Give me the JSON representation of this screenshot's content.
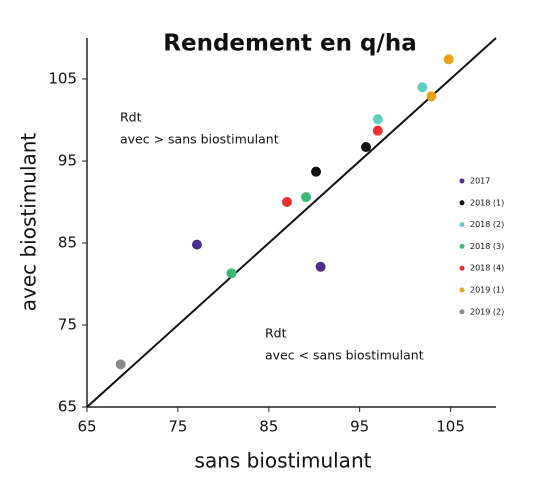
{
  "chart_data": {
    "type": "scatter",
    "title": "Rendement en q/ha",
    "xlabel": "sans biostimulant",
    "ylabel": "avec biostimulant",
    "xlim": [
      65,
      110
    ],
    "ylim": [
      65,
      110
    ],
    "xticks": [
      65,
      75,
      85,
      95,
      105
    ],
    "yticks": [
      65,
      75,
      85,
      95,
      105
    ],
    "annotations": [
      [
        "Rdt",
        "avec > sans biostimulant"
      ],
      [
        "Rdt",
        "avec < sans biostimulant"
      ]
    ],
    "series": [
      {
        "name": "2017",
        "color": "#4b2e8f",
        "x": [
          77.1,
          90.7
        ],
        "values": [
          84.8,
          82.1
        ]
      },
      {
        "name": "2018 (1)",
        "color": "#111111",
        "x": [
          90.2,
          95.7
        ],
        "values": [
          93.7,
          96.7
        ]
      },
      {
        "name": "2018 (2)",
        "color": "#5fcfc0",
        "x": [
          97.0,
          101.9
        ],
        "values": [
          100.1,
          104.0
        ]
      },
      {
        "name": "2018 (3)",
        "color": "#3bb878",
        "x": [
          80.9,
          89.1
        ],
        "values": [
          81.3,
          90.6
        ]
      },
      {
        "name": "2018 (4)",
        "color": "#e8322e",
        "x": [
          87.0,
          97.0
        ],
        "values": [
          90.0,
          98.7
        ]
      },
      {
        "name": "2019 (1)",
        "color": "#e8a317",
        "x": [
          104.8,
          102.9
        ],
        "values": [
          107.4,
          102.9
        ]
      },
      {
        "name": "2019 (2)",
        "color": "#8a8a8a",
        "x": [
          68.7
        ],
        "values": [
          70.2
        ]
      }
    ]
  }
}
